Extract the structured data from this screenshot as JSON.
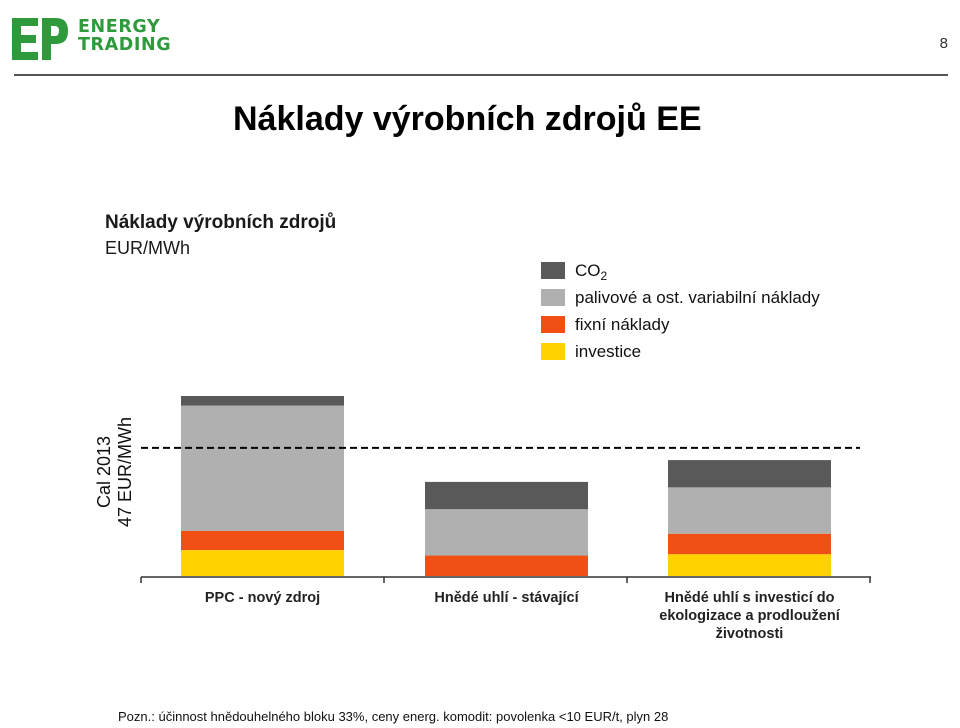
{
  "header": {
    "logo_text": "ENERGY\nTRADING",
    "page_number": "8",
    "slide_title": "Náklady výrobních zdrojů EE"
  },
  "colors": {
    "brand_green": "#2e9a3c",
    "co2": "#595959",
    "variable_costs": "#b0b0b0",
    "fixed_costs": "#f05014",
    "investment": "#ffd200"
  },
  "chart_data": {
    "type": "bar",
    "stacked": true,
    "title": "Náklady výrobních zdrojů",
    "subtitle": "EUR/MWh",
    "categories": [
      "PPC - nový zdroj",
      "Hnědé uhlí - stávající",
      "Hnědé uhlí s investicí do ekologizace a prodloužení životnosti"
    ],
    "series": [
      {
        "name": "investice",
        "color": "#ffd200",
        "values": [
          9.5,
          0,
          8
        ]
      },
      {
        "name": "fixní náklady",
        "color": "#f05014",
        "values": [
          7,
          7.5,
          7.5
        ]
      },
      {
        "name": "palivové a ost. variabilní náklady",
        "color": "#b0b0b0",
        "values": [
          46,
          17,
          17
        ]
      },
      {
        "name": "CO2",
        "color": "#595959",
        "values": [
          3.5,
          10,
          10
        ]
      }
    ],
    "legend_order": [
      "CO2",
      "palivové a ost. variabilní náklady",
      "fixní náklady",
      "investice"
    ],
    "legend_position": "top-right",
    "reference_line": {
      "value": 47,
      "label_line1": "Cal 2013",
      "label_line2": "47 EUR/MWh",
      "style": "dashed"
    },
    "ylim": [
      0,
      66
    ],
    "grid": false
  },
  "footnote": "Pozn.: účinnost hnědouhelného bloku 33%, ceny energ. komodit: povolenka <10 EUR/t, plyn 28"
}
